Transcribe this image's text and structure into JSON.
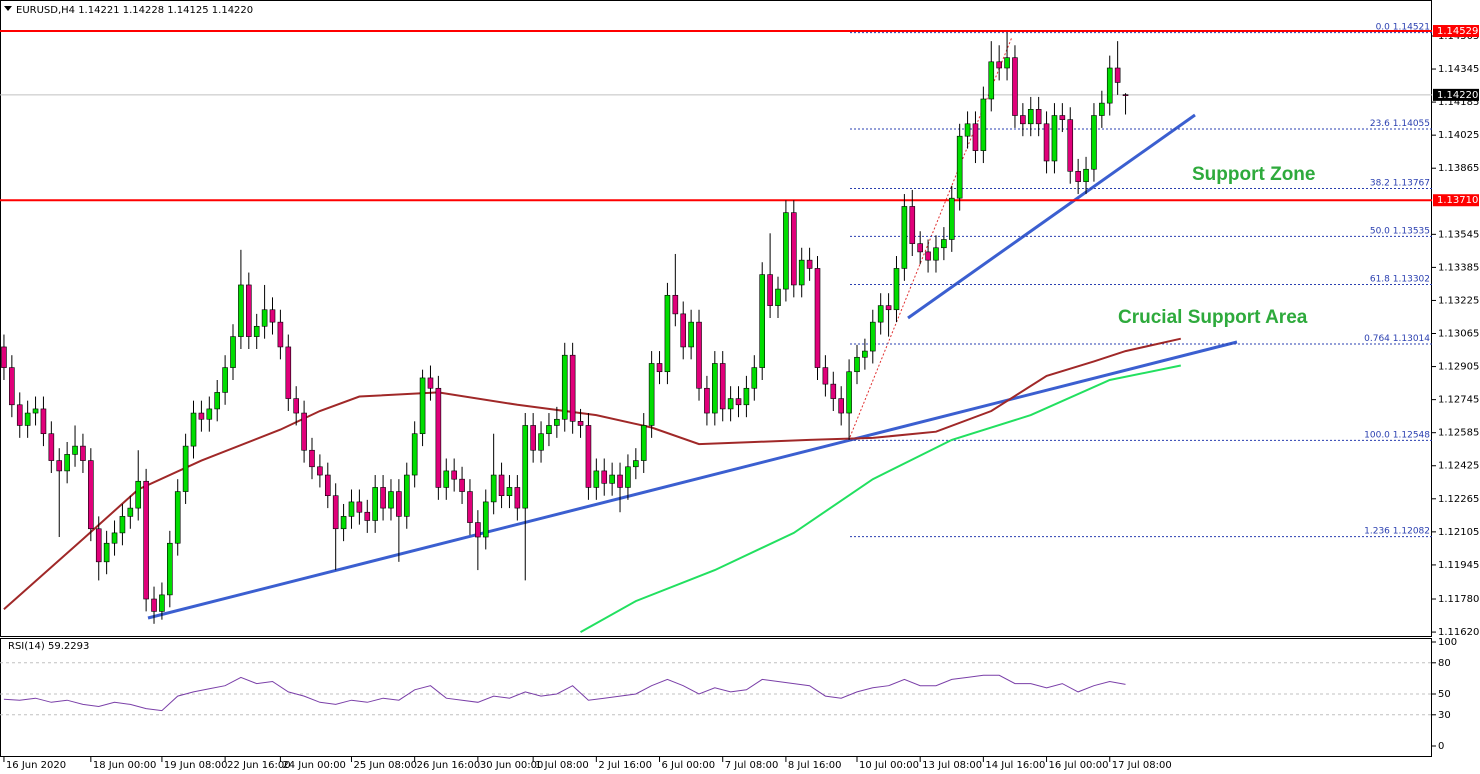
{
  "chart_data": {
    "type": "candlestick",
    "title": "EURUSD,H4  1.14221 1.14228 1.14125 1.14220",
    "bull_color": "#00dd00",
    "bear_color": "#e0007a",
    "xlim": [
      -0.5,
      180.8
    ],
    "xticks": [
      {
        "value": 0,
        "label": "16 Jun 2020"
      },
      {
        "value": 11,
        "label": "18 Jun 00:00"
      },
      {
        "value": 20,
        "label": "19 Jun 08:00"
      },
      {
        "value": 28,
        "label": "22 Jun 16:00"
      },
      {
        "value": 35,
        "label": "24 Jun 00:00"
      },
      {
        "value": 44,
        "label": "25 Jun 08:00"
      },
      {
        "value": 52,
        "label": "26 Jun 16:00"
      },
      {
        "value": 60,
        "label": "30 Jun 00:00"
      },
      {
        "value": 67,
        "label": "1 Jul 08:00"
      },
      {
        "value": 75,
        "label": "2 Jul 16:00"
      },
      {
        "value": 83,
        "label": "6 Jul 00:00"
      },
      {
        "value": 91,
        "label": "7 Jul 08:00"
      },
      {
        "value": 99,
        "label": "8 Jul 16:00"
      },
      {
        "value": 108,
        "label": "10 Jul 00:00"
      },
      {
        "value": 116,
        "label": "13 Jul 08:00"
      },
      {
        "value": 124,
        "label": "14 Jul 16:00"
      },
      {
        "value": 132,
        "label": "16 Jul 00:00"
      },
      {
        "value": 140,
        "label": "17 Jul 08:00"
      }
    ],
    "ylim": [
      1.11601,
      1.14592
    ],
    "yticks": [
      1.14505,
      1.14345,
      1.14185,
      1.14025,
      1.13865,
      1.13545,
      1.13385,
      1.13225,
      1.13065,
      1.12905,
      1.12745,
      1.12585,
      1.12425,
      1.12265,
      1.12105,
      1.11945,
      {
        "value": 1.1178,
        "label": "1.11780"
      },
      {
        "value": 1.1162,
        "label": "1.11620"
      }
    ],
    "candles": [
      [
        1.13,
        1.1306,
        1.1284,
        1.129
      ],
      [
        1.129,
        1.1296,
        1.1266,
        1.1272
      ],
      [
        1.1272,
        1.1278,
        1.1256,
        1.1262
      ],
      [
        1.1262,
        1.1274,
        1.1256,
        1.1268
      ],
      [
        1.1268,
        1.1276,
        1.1262,
        1.127
      ],
      [
        1.127,
        1.1276,
        1.1252,
        1.1258
      ],
      [
        1.1258,
        1.1264,
        1.1239,
        1.1245
      ],
      [
        1.1245,
        1.1251,
        1.1208,
        1.124
      ],
      [
        1.124,
        1.1254,
        1.1234,
        1.1248
      ],
      [
        1.1248,
        1.1262,
        1.1242,
        1.1252
      ],
      [
        1.1252,
        1.1258,
        1.1239,
        1.1245
      ],
      [
        1.1245,
        1.1251,
        1.1206,
        1.1212
      ],
      [
        1.1212,
        1.1218,
        1.1187,
        1.1196
      ],
      [
        1.1196,
        1.1211,
        1.119,
        1.1205
      ],
      [
        1.1205,
        1.1216,
        1.1199,
        1.121
      ],
      [
        1.121,
        1.1224,
        1.1204,
        1.1218
      ],
      [
        1.1218,
        1.1228,
        1.1212,
        1.1222
      ],
      [
        1.1222,
        1.125,
        1.1216,
        1.1235
      ],
      [
        1.1235,
        1.1241,
        1.1172,
        1.1178
      ],
      [
        1.1178,
        1.1184,
        1.1166,
        1.1172
      ],
      [
        1.1172,
        1.1186,
        1.1168,
        1.118
      ],
      [
        1.118,
        1.1211,
        1.1174,
        1.1205
      ],
      [
        1.1205,
        1.1236,
        1.1199,
        1.123
      ],
      [
        1.123,
        1.1258,
        1.1224,
        1.1252
      ],
      [
        1.1252,
        1.1274,
        1.1246,
        1.1268
      ],
      [
        1.1268,
        1.1274,
        1.1259,
        1.1265
      ],
      [
        1.1265,
        1.1276,
        1.1259,
        1.127
      ],
      [
        1.127,
        1.1284,
        1.1264,
        1.1278
      ],
      [
        1.1278,
        1.1296,
        1.1272,
        1.129
      ],
      [
        1.129,
        1.1311,
        1.1284,
        1.1305
      ],
      [
        1.1305,
        1.1347,
        1.1299,
        1.133
      ],
      [
        1.133,
        1.1336,
        1.1299,
        1.1305
      ],
      [
        1.1305,
        1.1316,
        1.1299,
        1.131
      ],
      [
        1.131,
        1.133,
        1.1304,
        1.1318
      ],
      [
        1.1318,
        1.1324,
        1.1306,
        1.1312
      ],
      [
        1.1312,
        1.1318,
        1.1294,
        1.13
      ],
      [
        1.13,
        1.1306,
        1.1269,
        1.1275
      ],
      [
        1.1275,
        1.1281,
        1.1262,
        1.1268
      ],
      [
        1.1268,
        1.1274,
        1.1244,
        1.125
      ],
      [
        1.125,
        1.1256,
        1.1236,
        1.1242
      ],
      [
        1.1242,
        1.1248,
        1.1232,
        1.1238
      ],
      [
        1.1238,
        1.1244,
        1.1222,
        1.1228
      ],
      [
        1.1228,
        1.1234,
        1.1192,
        1.1212
      ],
      [
        1.1212,
        1.1224,
        1.1206,
        1.1218
      ],
      [
        1.1218,
        1.1231,
        1.1212,
        1.1225
      ],
      [
        1.1225,
        1.1231,
        1.1214,
        1.122
      ],
      [
        1.122,
        1.1226,
        1.121,
        1.1216
      ],
      [
        1.1216,
        1.1238,
        1.121,
        1.1232
      ],
      [
        1.1232,
        1.1238,
        1.1216,
        1.1222
      ],
      [
        1.1222,
        1.1236,
        1.1216,
        1.123
      ],
      [
        1.123,
        1.1236,
        1.1196,
        1.1218
      ],
      [
        1.1218,
        1.1244,
        1.1212,
        1.1238
      ],
      [
        1.1238,
        1.1264,
        1.1232,
        1.1258
      ],
      [
        1.1258,
        1.1289,
        1.1252,
        1.1285
      ],
      [
        1.1285,
        1.1291,
        1.1274,
        1.128
      ],
      [
        1.128,
        1.1286,
        1.1226,
        1.1232
      ],
      [
        1.1232,
        1.1246,
        1.1226,
        1.124
      ],
      [
        1.124,
        1.1246,
        1.123,
        1.1236
      ],
      [
        1.1236,
        1.1242,
        1.1224,
        1.123
      ],
      [
        1.123,
        1.1236,
        1.1209,
        1.1215
      ],
      [
        1.1215,
        1.1221,
        1.1192,
        1.1208
      ],
      [
        1.1208,
        1.1231,
        1.1202,
        1.1225
      ],
      [
        1.1225,
        1.1258,
        1.1219,
        1.1238
      ],
      [
        1.1238,
        1.1244,
        1.1222,
        1.1228
      ],
      [
        1.1228,
        1.1238,
        1.1222,
        1.1232
      ],
      [
        1.1232,
        1.1238,
        1.1216,
        1.1222
      ],
      [
        1.1222,
        1.1268,
        1.1187,
        1.1262
      ],
      [
        1.1262,
        1.1268,
        1.1244,
        1.125
      ],
      [
        1.125,
        1.1264,
        1.1244,
        1.1258
      ],
      [
        1.1258,
        1.1268,
        1.1252,
        1.1262
      ],
      [
        1.1262,
        1.1271,
        1.1256,
        1.1265
      ],
      [
        1.1265,
        1.1302,
        1.1259,
        1.1296
      ],
      [
        1.1296,
        1.1302,
        1.1258,
        1.1264
      ],
      [
        1.1264,
        1.127,
        1.1256,
        1.1262
      ],
      [
        1.1262,
        1.1268,
        1.1226,
        1.1232
      ],
      [
        1.1232,
        1.1246,
        1.1226,
        1.124
      ],
      [
        1.124,
        1.1246,
        1.1228,
        1.1234
      ],
      [
        1.1234,
        1.1244,
        1.1228,
        1.1238
      ],
      [
        1.1238,
        1.1244,
        1.122,
        1.1232
      ],
      [
        1.1232,
        1.1248,
        1.1226,
        1.1242
      ],
      [
        1.1242,
        1.1251,
        1.1236,
        1.1245
      ],
      [
        1.1245,
        1.1268,
        1.1239,
        1.1262
      ],
      [
        1.1262,
        1.1298,
        1.1256,
        1.1292
      ],
      [
        1.1292,
        1.1298,
        1.1282,
        1.1288
      ],
      [
        1.1288,
        1.1331,
        1.1282,
        1.1325
      ],
      [
        1.1325,
        1.1345,
        1.131,
        1.1316
      ],
      [
        1.1316,
        1.1322,
        1.1294,
        1.13
      ],
      [
        1.13,
        1.1318,
        1.1294,
        1.1312
      ],
      [
        1.1312,
        1.1318,
        1.1274,
        1.128
      ],
      [
        1.128,
        1.1286,
        1.1262,
        1.1268
      ],
      [
        1.1268,
        1.1298,
        1.1262,
        1.1292
      ],
      [
        1.1292,
        1.1298,
        1.1264,
        1.127
      ],
      [
        1.127,
        1.1281,
        1.1264,
        1.1275
      ],
      [
        1.1275,
        1.1281,
        1.1266,
        1.1272
      ],
      [
        1.1272,
        1.1286,
        1.1266,
        1.128
      ],
      [
        1.128,
        1.1296,
        1.1274,
        1.129
      ],
      [
        1.129,
        1.1341,
        1.1284,
        1.1335
      ],
      [
        1.1335,
        1.1355,
        1.1314,
        1.132
      ],
      [
        1.132,
        1.1334,
        1.1314,
        1.1328
      ],
      [
        1.1328,
        1.1371,
        1.1322,
        1.1365
      ],
      [
        1.1365,
        1.1371,
        1.1324,
        1.133
      ],
      [
        1.133,
        1.1348,
        1.1324,
        1.1342
      ],
      [
        1.1342,
        1.1348,
        1.1332,
        1.1338
      ],
      [
        1.1338,
        1.1344,
        1.1284,
        1.129
      ],
      [
        1.129,
        1.1296,
        1.1276,
        1.1282
      ],
      [
        1.1282,
        1.1288,
        1.1269,
        1.1275
      ],
      [
        1.1275,
        1.1281,
        1.1262,
        1.1268
      ],
      [
        1.1268,
        1.1294,
        1.1255,
        1.1288
      ],
      [
        1.1288,
        1.1301,
        1.1282,
        1.1295
      ],
      [
        1.1295,
        1.1304,
        1.1289,
        1.1298
      ],
      [
        1.1298,
        1.1318,
        1.1292,
        1.1312
      ],
      [
        1.1312,
        1.1326,
        1.1306,
        1.132
      ],
      [
        1.132,
        1.1326,
        1.1305,
        1.1318
      ],
      [
        1.1318,
        1.1344,
        1.1312,
        1.1338
      ],
      [
        1.1338,
        1.1374,
        1.1332,
        1.1368
      ],
      [
        1.1368,
        1.1376,
        1.1344,
        1.135
      ],
      [
        1.135,
        1.1356,
        1.134,
        1.1346
      ],
      [
        1.1346,
        1.1352,
        1.1336,
        1.1342
      ],
      [
        1.1342,
        1.1354,
        1.1336,
        1.1348
      ],
      [
        1.1348,
        1.1358,
        1.1342,
        1.1352
      ],
      [
        1.1352,
        1.1378,
        1.1346,
        1.1372
      ],
      [
        1.1372,
        1.1408,
        1.1366,
        1.1402
      ],
      [
        1.1402,
        1.1414,
        1.1396,
        1.1408
      ],
      [
        1.1408,
        1.1414,
        1.1389,
        1.1395
      ],
      [
        1.1395,
        1.1426,
        1.1389,
        1.142
      ],
      [
        1.142,
        1.1448,
        1.1414,
        1.1438
      ],
      [
        1.1438,
        1.1446,
        1.1429,
        1.1435
      ],
      [
        1.1435,
        1.14521,
        1.1429,
        1.144
      ],
      [
        1.144,
        1.1446,
        1.1406,
        1.1412
      ],
      [
        1.1412,
        1.1418,
        1.1402,
        1.1408
      ],
      [
        1.1408,
        1.1421,
        1.1402,
        1.1415
      ],
      [
        1.1415,
        1.1421,
        1.1402,
        1.1408
      ],
      [
        1.1408,
        1.1414,
        1.1384,
        1.139
      ],
      [
        1.139,
        1.1418,
        1.1384,
        1.1412
      ],
      [
        1.1412,
        1.1418,
        1.1404,
        1.141
      ],
      [
        1.141,
        1.1416,
        1.1379,
        1.1385
      ],
      [
        1.1385,
        1.1391,
        1.1374,
        1.138
      ],
      [
        1.138,
        1.1392,
        1.1374,
        1.1386
      ],
      [
        1.1386,
        1.1418,
        1.138,
        1.1412
      ],
      [
        1.1412,
        1.1424,
        1.1406,
        1.1418
      ],
      [
        1.1418,
        1.1441,
        1.1412,
        1.1435
      ],
      [
        1.1435,
        1.1448,
        1.1422,
        1.1428
      ],
      [
        1.14221,
        1.14228,
        1.14125,
        1.1422
      ]
    ],
    "moving_averages": [
      {
        "color": "#a02828",
        "x": [
          0,
          10,
          17,
          25,
          35,
          40,
          45,
          55,
          65,
          75,
          82,
          88,
          95,
          102,
          110,
          118,
          125,
          132,
          138,
          142,
          149
        ],
        "values": [
          1.1173,
          1.1207,
          1.1231,
          1.1245,
          1.126,
          1.1269,
          1.1276,
          1.1278,
          1.1272,
          1.1267,
          1.1261,
          1.1253,
          1.1254,
          1.1255,
          1.1256,
          1.1259,
          1.1269,
          1.1286,
          1.1293,
          1.1298,
          1.1304
        ]
      },
      {
        "color": "#22e060",
        "x": [
          73,
          80,
          90,
          100,
          110,
          120,
          130,
          140,
          149
        ],
        "values": [
          1.1162,
          1.1177,
          1.1192,
          1.121,
          1.1236,
          1.1255,
          1.1267,
          1.1284,
          1.1291
        ]
      }
    ],
    "levels": [
      {
        "value": 1.14529,
        "label": "1.14529",
        "color": "#ff0000"
      },
      {
        "value": 1.1422,
        "label": "1.14220",
        "color": "#000000"
      },
      {
        "value": 1.1371,
        "label": "1.13710",
        "color": "#ff0000"
      }
    ],
    "fibonacci": [
      {
        "ratio": "0.0",
        "price": 1.14521
      },
      {
        "ratio": "23.6",
        "price": 1.14055
      },
      {
        "ratio": "38.2",
        "price": 1.13767
      },
      {
        "ratio": "50.0",
        "price": 1.13535
      },
      {
        "ratio": "61.8",
        "price": 1.13302
      },
      {
        "ratio": "0.764",
        "price": 1.13014
      },
      {
        "ratio": "100.0",
        "price": 1.12548
      },
      {
        "ratio": "1.236",
        "price": 1.12082
      }
    ],
    "annotations": [
      "Support Zone",
      "Crucial Support Area"
    ],
    "rsi": {
      "label": "RSI(14)",
      "value": 59.2293,
      "color": "#7a3fa8",
      "ylim": [
        0,
        100
      ],
      "yticks": [
        100,
        80,
        50,
        30,
        0
      ],
      "x": [
        0,
        2,
        4,
        6,
        8,
        10,
        12,
        14,
        16,
        18,
        20,
        22,
        24,
        26,
        28,
        30,
        32,
        34,
        36,
        38,
        40,
        42,
        44,
        46,
        48,
        50,
        52,
        54,
        56,
        58,
        60,
        62,
        64,
        66,
        68,
        70,
        72,
        74,
        76,
        78,
        80,
        82,
        84,
        86,
        88,
        90,
        92,
        94,
        96,
        98,
        100,
        102,
        104,
        106,
        108,
        110,
        112,
        114,
        116,
        118,
        120,
        122,
        124,
        126,
        128,
        130,
        132,
        134,
        136,
        138,
        140,
        142
      ],
      "values": [
        45,
        44,
        46,
        42,
        44,
        40,
        38,
        42,
        40,
        36,
        34,
        48,
        52,
        55,
        58,
        66,
        60,
        62,
        52,
        48,
        42,
        40,
        44,
        42,
        46,
        44,
        54,
        58,
        46,
        44,
        42,
        48,
        46,
        52,
        48,
        50,
        58,
        44,
        46,
        48,
        50,
        58,
        64,
        58,
        50,
        56,
        52,
        54,
        64,
        62,
        60,
        58,
        48,
        46,
        52,
        56,
        58,
        64,
        58,
        58,
        64,
        66,
        68,
        68,
        60,
        60,
        56,
        60,
        52,
        58,
        62,
        59.2293
      ]
    }
  }
}
